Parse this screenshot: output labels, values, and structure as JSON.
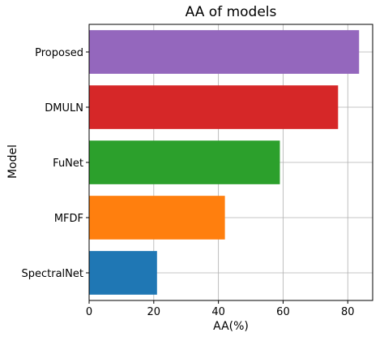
{
  "chart_data": {
    "type": "bar",
    "orientation": "horizontal",
    "title": "AA of models",
    "xlabel": "AA(%)",
    "ylabel": "Model",
    "categories": [
      "SpectralNet",
      "MFDF",
      "FuNet",
      "DMULN",
      "Proposed"
    ],
    "values": [
      21,
      42,
      59,
      77,
      83.5
    ],
    "colors": [
      "#1f77b4",
      "#ff7f0e",
      "#2ca02c",
      "#d62728",
      "#9467bd"
    ],
    "xlim": [
      0,
      87.7
    ],
    "xticks": [
      0,
      20,
      40,
      60,
      80
    ],
    "grid": true
  }
}
